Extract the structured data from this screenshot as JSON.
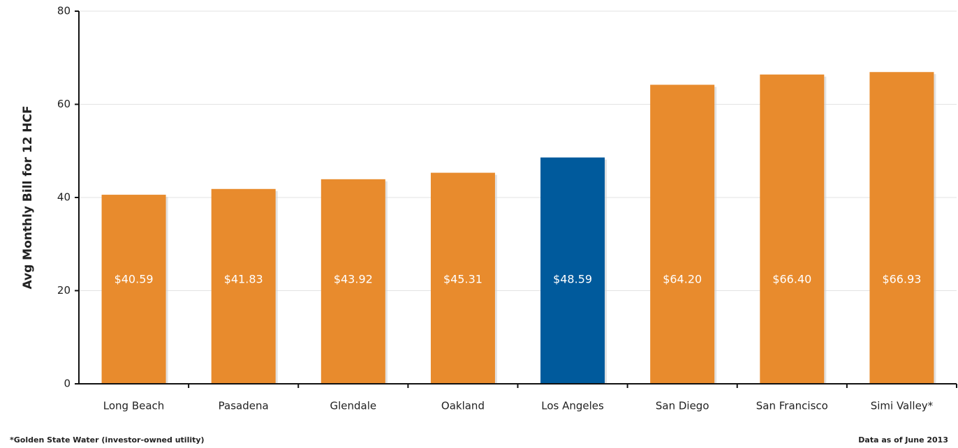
{
  "chart_data": {
    "type": "bar",
    "y_label": "Avg Monthly Bill for 12 HCF",
    "categories": [
      "Long Beach",
      "Pasadena",
      "Glendale",
      "Oakland",
      "Los Angeles",
      "San Diego",
      "San Francisco",
      "Simi Valley*"
    ],
    "values": [
      40.59,
      41.83,
      43.92,
      45.31,
      48.59,
      64.2,
      66.4,
      66.93
    ],
    "value_labels": [
      "$40.59",
      "$41.83",
      "$43.92",
      "$45.31",
      "$48.59",
      "$64.20",
      "$66.40",
      "$66.93"
    ],
    "colors": [
      "#e88b2d",
      "#e88b2d",
      "#e88b2d",
      "#e88b2d",
      "#005a9c",
      "#e88b2d",
      "#e88b2d",
      "#e88b2d"
    ],
    "ylim": [
      0,
      80
    ],
    "yticks": [
      0,
      20,
      40,
      60,
      80
    ],
    "grid": true,
    "footnote": "*Golden State Water (investor-owned utility)",
    "source_note": "Data as of June 2013"
  }
}
